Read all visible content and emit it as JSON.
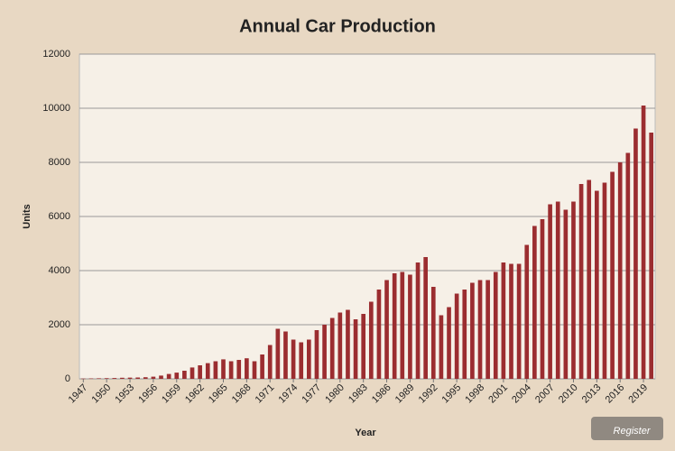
{
  "chart_data": {
    "type": "bar",
    "title": "Annual Car Production",
    "y_label": "Units",
    "x_label": "Year",
    "watermark": "Register",
    "x": [
      1947,
      1948,
      1949,
      1950,
      1951,
      1952,
      1953,
      1954,
      1955,
      1956,
      1957,
      1958,
      1959,
      1960,
      1961,
      1962,
      1963,
      1964,
      1965,
      1966,
      1967,
      1968,
      1969,
      1970,
      1971,
      1972,
      1973,
      1974,
      1975,
      1976,
      1977,
      1978,
      1979,
      1980,
      1981,
      1982,
      1983,
      1984,
      1985,
      1986,
      1987,
      1988,
      1989,
      1990,
      1991,
      1992,
      1993,
      1994,
      1995,
      1996,
      1997,
      1998,
      1999,
      2000,
      2001,
      2002,
      2003,
      2004,
      2005,
      2006,
      2007,
      2008,
      2009,
      2010,
      2011,
      2012,
      2013,
      2014,
      2015,
      2016,
      2017,
      2018,
      2019,
      2020
    ],
    "values": [
      10,
      15,
      20,
      25,
      30,
      40,
      45,
      50,
      60,
      80,
      120,
      180,
      230,
      300,
      420,
      500,
      580,
      650,
      720,
      650,
      700,
      760,
      650,
      900,
      1250,
      1850,
      1750,
      1450,
      1350,
      1450,
      1800,
      2000,
      2250,
      2450,
      2550,
      2200,
      2400,
      2850,
      3300,
      3650,
      3900,
      3950,
      3850,
      4300,
      4500,
      3400,
      2350,
      2650,
      3150,
      3300,
      3550,
      3650,
      3650,
      3950,
      4300,
      4250,
      4250,
      4950,
      5650,
      5900,
      6450,
      6550,
      6250,
      6550,
      7200,
      7350,
      6950,
      7250,
      7650,
      8000,
      8350,
      9250,
      10100,
      9100
    ],
    "color": "#9b2d30",
    "xlim": [
      1946.5,
      2020.5
    ],
    "xticks": [
      1947,
      1950,
      1953,
      1956,
      1959,
      1962,
      1965,
      1968,
      1971,
      1974,
      1977,
      1980,
      1983,
      1986,
      1989,
      1992,
      1995,
      1998,
      2001,
      2004,
      2007,
      2010,
      2013,
      2016,
      2019
    ],
    "ylim": [
      0,
      12000
    ],
    "yticks": [
      0,
      2000,
      4000,
      6000,
      8000,
      10000,
      12000
    ],
    "grid": true
  }
}
